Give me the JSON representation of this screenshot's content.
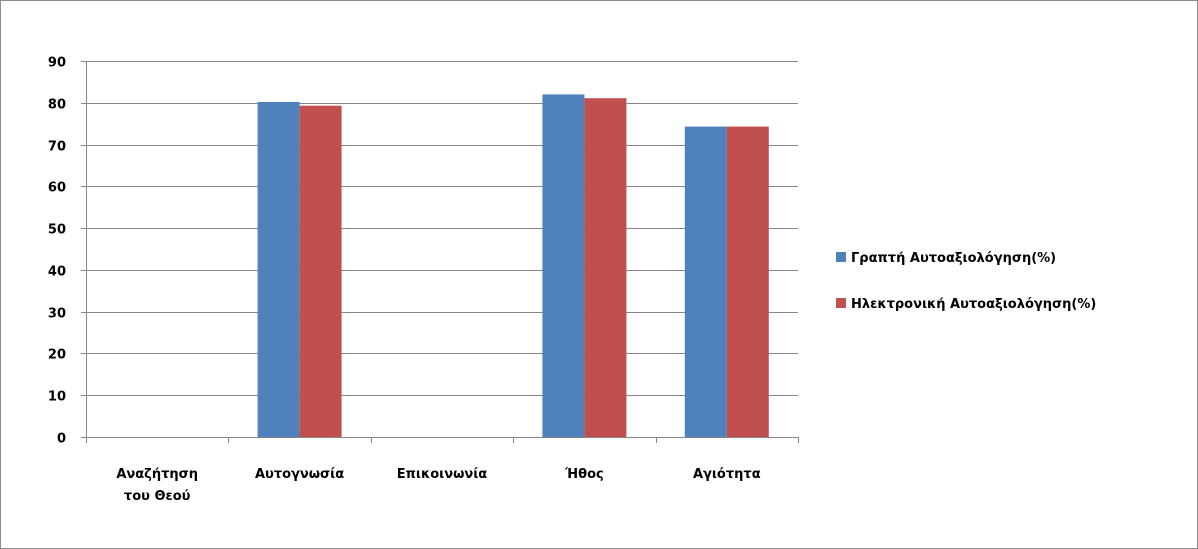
{
  "chart_data": {
    "type": "bar",
    "categories": [
      [
        "Αναζήτηση",
        "του Θεού"
      ],
      [
        "Αυτογνωσία"
      ],
      [
        "Επικοινωνία"
      ],
      [
        "Ήθος"
      ],
      [
        "Αγιότητα"
      ]
    ],
    "series": [
      {
        "name": "Γραπτή Αυτοαξιολόγηση(%)",
        "color": "#4f81bd",
        "values": [
          null,
          80.2,
          null,
          82,
          74.3
        ]
      },
      {
        "name": "Ηλεκτρονική Αυτοαξιολόγηση(%)",
        "color": "#c0504d",
        "values": [
          null,
          79.3,
          null,
          81.1,
          74.3
        ]
      }
    ],
    "title": "",
    "xlabel": "",
    "ylabel": "",
    "ylim": [
      0,
      90
    ],
    "yticks": [
      "0",
      "10",
      "20",
      "30",
      "40",
      "50",
      "60",
      "70",
      "80",
      "90"
    ],
    "grid": true,
    "legend_position": "right"
  }
}
